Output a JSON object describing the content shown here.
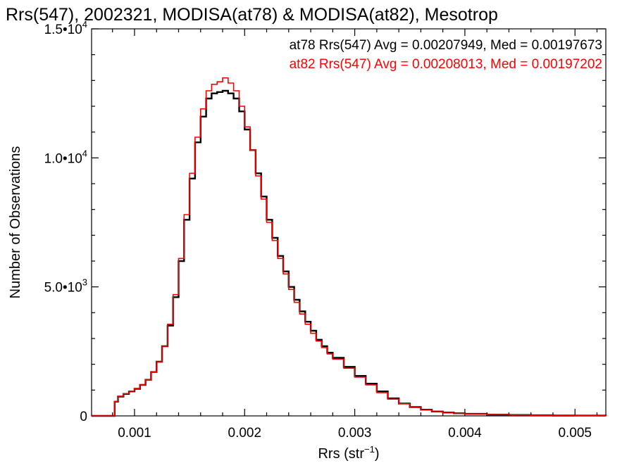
{
  "chart_data": {
    "type": "line",
    "title": "Rrs(547), 2002321, MODISA(at78) & MODISA(at82), Mesotrop",
    "xlabel": "Rrs (str",
    "xlabel_sup": "−1",
    "xlabel_tail": ")",
    "ylabel": "Number of Observations",
    "xlim": [
      0.00061,
      0.00528
    ],
    "ylim": [
      0,
      15000
    ],
    "xticks": [
      {
        "value": 0.001,
        "label": "0.001"
      },
      {
        "value": 0.002,
        "label": "0.002"
      },
      {
        "value": 0.003,
        "label": "0.003"
      },
      {
        "value": 0.004,
        "label": "0.004"
      },
      {
        "value": 0.005,
        "label": "0.005"
      }
    ],
    "yticks": [
      {
        "value": 0,
        "base": "0",
        "exp": ""
      },
      {
        "value": 5000,
        "base": "5.0•10",
        "exp": "3"
      },
      {
        "value": 10000,
        "base": "1.0•10",
        "exp": "4"
      },
      {
        "value": 15000,
        "base": "1.5•10",
        "exp": "4"
      }
    ],
    "grid": false,
    "legend_position": "top-right",
    "series": [
      {
        "name": "at78",
        "color": "#000000",
        "label": "at78 Rrs(547) Avg = 0.00207949, Med = 0.00197673",
        "x": [
          0.00061,
          0.0008,
          0.00082,
          0.00085,
          0.0009,
          0.00095,
          0.001,
          0.00105,
          0.0011,
          0.00115,
          0.0012,
          0.00125,
          0.0013,
          0.00135,
          0.0014,
          0.00145,
          0.0015,
          0.00155,
          0.0016,
          0.00165,
          0.0017,
          0.00175,
          0.0018,
          0.00185,
          0.0019,
          0.00195,
          0.002,
          0.00205,
          0.0021,
          0.00215,
          0.0022,
          0.00225,
          0.0023,
          0.00235,
          0.0024,
          0.00245,
          0.0025,
          0.00255,
          0.0026,
          0.00265,
          0.0027,
          0.00275,
          0.0028,
          0.0029,
          0.003,
          0.0031,
          0.0032,
          0.0033,
          0.0034,
          0.0035,
          0.0036,
          0.0037,
          0.0038,
          0.0039,
          0.004,
          0.0042,
          0.0044,
          0.0046,
          0.0048,
          0.005,
          0.00528
        ],
        "y": [
          0,
          0,
          550,
          750,
          850,
          950,
          1050,
          1200,
          1400,
          1700,
          2100,
          2700,
          3500,
          4600,
          6000,
          7600,
          9200,
          10600,
          11600,
          12300,
          12500,
          12550,
          12600,
          12500,
          12300,
          11800,
          11100,
          10300,
          9400,
          8500,
          7600,
          6900,
          6200,
          5600,
          5000,
          4500,
          4050,
          3650,
          3300,
          2950,
          2700,
          2450,
          2250,
          1900,
          1550,
          1250,
          950,
          680,
          480,
          340,
          240,
          170,
          130,
          100,
          80,
          50,
          35,
          25,
          15,
          10,
          5
        ]
      },
      {
        "name": "at82",
        "color": "#ff0000",
        "label": "at82 Rrs(547) Avg = 0.00208013, Med = 0.00197202",
        "x": [
          0.00061,
          0.0008,
          0.00082,
          0.00085,
          0.0009,
          0.00095,
          0.001,
          0.00105,
          0.0011,
          0.00115,
          0.0012,
          0.00125,
          0.0013,
          0.00135,
          0.0014,
          0.00145,
          0.0015,
          0.00155,
          0.0016,
          0.00165,
          0.0017,
          0.00175,
          0.0018,
          0.00185,
          0.0019,
          0.00195,
          0.002,
          0.00205,
          0.0021,
          0.00215,
          0.0022,
          0.00225,
          0.0023,
          0.00235,
          0.0024,
          0.00245,
          0.0025,
          0.00255,
          0.0026,
          0.00265,
          0.0027,
          0.00275,
          0.0028,
          0.0029,
          0.003,
          0.0031,
          0.0032,
          0.0033,
          0.0034,
          0.0035,
          0.0036,
          0.0037,
          0.0038,
          0.0039,
          0.004,
          0.0042,
          0.0044,
          0.0046,
          0.0048,
          0.005,
          0.00528
        ],
        "y": [
          0,
          0,
          560,
          760,
          860,
          960,
          1060,
          1200,
          1400,
          1700,
          2100,
          2700,
          3550,
          4700,
          6100,
          7800,
          9400,
          10800,
          11900,
          12600,
          12850,
          12950,
          13100,
          12900,
          12600,
          12000,
          11200,
          10300,
          9300,
          8400,
          7500,
          6800,
          6100,
          5500,
          4900,
          4400,
          3950,
          3550,
          3200,
          2900,
          2650,
          2400,
          2200,
          1850,
          1500,
          1200,
          900,
          650,
          470,
          330,
          230,
          165,
          125,
          95,
          75,
          48,
          33,
          23,
          14,
          9,
          4
        ]
      }
    ]
  }
}
